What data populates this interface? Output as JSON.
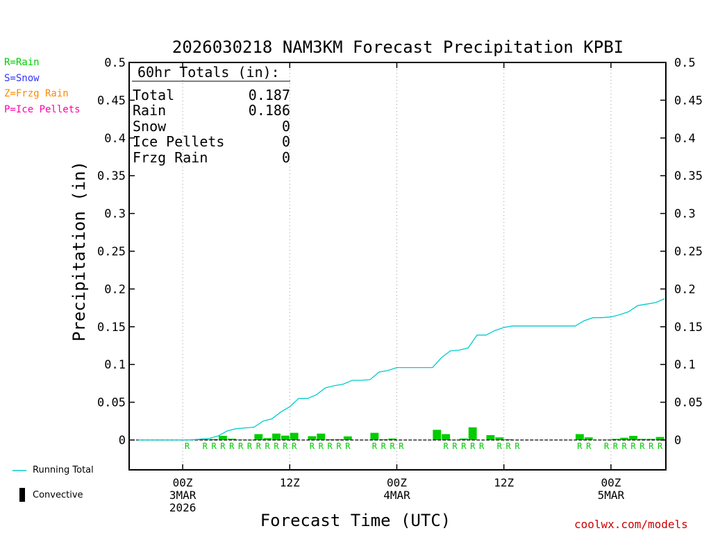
{
  "legend_keys": [
    {
      "text": "R=Rain",
      "color": "#00cc00"
    },
    {
      "text": "S=Snow",
      "color": "#3333ff"
    },
    {
      "text": "Z=Frzg Rain",
      "color": "#ff8800"
    },
    {
      "text": "P=Ice Pellets",
      "color": "#ff00aa"
    }
  ],
  "totals_box": {
    "heading": "60hr Totals (in):",
    "rows": [
      {
        "label": "Total",
        "value": "0.187"
      },
      {
        "label": "Rain",
        "value": "0.186"
      },
      {
        "label": "Snow",
        "value": "0"
      },
      {
        "label": "Ice Pellets",
        "value": "0"
      },
      {
        "label": "Frzg Rain",
        "value": "0"
      }
    ]
  },
  "bottom_legend": {
    "running_total": "Running Total",
    "convective": "Convective"
  },
  "watermark": "coolwx.com/models",
  "colors": {
    "running_total": "#00cccc",
    "rain_bar": "#00cc00",
    "axis": "#000000",
    "grid": "#999999"
  },
  "chart_data": {
    "type": "bar+line",
    "title": "2026030218 NAM3KM Forecast Precipitation KPBI",
    "xlabel": "Forecast Time (UTC)",
    "ylabel": "Precipitation (in)",
    "ylim": [
      -0.04,
      0.5
    ],
    "yticks": [
      0,
      0.05,
      0.1,
      0.15,
      0.2,
      0.25,
      0.3,
      0.35,
      0.4,
      0.45,
      0.5
    ],
    "ytick_labels": [
      "0",
      "0.05",
      "0.1",
      "0.15",
      "0.2",
      "0.25",
      "0.3",
      "0.35",
      "0.4",
      "0.45",
      "0.5"
    ],
    "x_unit": "forecast hour",
    "xlim": [
      0,
      61
    ],
    "xticks": [
      {
        "hour": 6,
        "lines": [
          "00Z",
          "3MAR",
          "2026"
        ]
      },
      {
        "hour": 18,
        "lines": [
          "12Z"
        ]
      },
      {
        "hour": 30,
        "lines": [
          "00Z",
          "4MAR"
        ]
      },
      {
        "hour": 42,
        "lines": [
          "12Z"
        ]
      },
      {
        "hour": 54,
        "lines": [
          "00Z",
          "5MAR"
        ]
      }
    ],
    "hours": [
      1,
      2,
      3,
      4,
      5,
      6,
      7,
      8,
      9,
      10,
      11,
      12,
      13,
      14,
      15,
      16,
      17,
      18,
      19,
      20,
      21,
      22,
      23,
      24,
      25,
      26,
      27,
      28,
      29,
      30,
      31,
      32,
      33,
      34,
      35,
      36,
      37,
      38,
      39,
      40,
      41,
      42,
      43,
      44,
      45,
      46,
      47,
      48,
      49,
      50,
      51,
      52,
      53,
      54,
      55,
      56,
      57,
      58,
      59,
      60
    ],
    "series": [
      {
        "name": "Rain (hourly)",
        "kind": "bar",
        "values": [
          0,
          0,
          0,
          0,
          0,
          0,
          0.0002,
          0.001,
          0.001,
          0.0013,
          0.0055,
          0.0018,
          0.0005,
          0.0003,
          0.0078,
          0.0025,
          0.0085,
          0.0058,
          0.0095,
          0,
          0.005,
          0.0085,
          0.001,
          0.001,
          0.0048,
          0,
          0,
          0.0095,
          0.001,
          0.002,
          0,
          0,
          0,
          0,
          0.0135,
          0.0078,
          0.0003,
          0.002,
          0.0168,
          0,
          0.0065,
          0.0035,
          0.001,
          0,
          0,
          0,
          0,
          0,
          0,
          0,
          0.0078,
          0.0035,
          0,
          0.0005,
          0.0015,
          0.003,
          0.0055,
          0.0015,
          0.0015,
          0.004
        ]
      },
      {
        "name": "Running Total",
        "kind": "line",
        "values": [
          0,
          0,
          0,
          0,
          0,
          0,
          0.0002,
          0.0012,
          0.0022,
          0.0055,
          0.012,
          0.015,
          0.016,
          0.017,
          0.025,
          0.028,
          0.037,
          0.044,
          0.055,
          0.055,
          0.06,
          0.069,
          0.072,
          0.074,
          0.079,
          0.079,
          0.08,
          0.09,
          0.092,
          0.096,
          0.096,
          0.096,
          0.096,
          0.096,
          0.109,
          0.118,
          0.119,
          0.122,
          0.139,
          0.139,
          0.145,
          0.149,
          0.151,
          0.151,
          0.151,
          0.151,
          0.151,
          0.151,
          0.151,
          0.151,
          0.158,
          0.162,
          0.162,
          0.163,
          0.166,
          0.17,
          0.178,
          0.18,
          0.182,
          0.187
        ]
      }
    ],
    "precip_type_codes": [
      {
        "hour": 7,
        "code": "R"
      },
      {
        "hour": 9,
        "code": "R"
      },
      {
        "hour": 10,
        "code": "R"
      },
      {
        "hour": 11,
        "code": "R"
      },
      {
        "hour": 12,
        "code": "R"
      },
      {
        "hour": 13,
        "code": "R"
      },
      {
        "hour": 14,
        "code": "R"
      },
      {
        "hour": 15,
        "code": "R"
      },
      {
        "hour": 16,
        "code": "R"
      },
      {
        "hour": 17,
        "code": "R"
      },
      {
        "hour": 18,
        "code": "R"
      },
      {
        "hour": 19,
        "code": "R"
      },
      {
        "hour": 21,
        "code": "R"
      },
      {
        "hour": 22,
        "code": "R"
      },
      {
        "hour": 23,
        "code": "R"
      },
      {
        "hour": 24,
        "code": "R"
      },
      {
        "hour": 25,
        "code": "R"
      },
      {
        "hour": 28,
        "code": "R"
      },
      {
        "hour": 29,
        "code": "R"
      },
      {
        "hour": 30,
        "code": "R"
      },
      {
        "hour": 31,
        "code": "R"
      },
      {
        "hour": 36,
        "code": "R"
      },
      {
        "hour": 37,
        "code": "R"
      },
      {
        "hour": 38,
        "code": "R"
      },
      {
        "hour": 39,
        "code": "R"
      },
      {
        "hour": 40,
        "code": "R"
      },
      {
        "hour": 42,
        "code": "R"
      },
      {
        "hour": 43,
        "code": "R"
      },
      {
        "hour": 44,
        "code": "R"
      },
      {
        "hour": 51,
        "code": "R"
      },
      {
        "hour": 52,
        "code": "R"
      },
      {
        "hour": 54,
        "code": "R"
      },
      {
        "hour": 55,
        "code": "R"
      },
      {
        "hour": 56,
        "code": "R"
      },
      {
        "hour": 57,
        "code": "R"
      },
      {
        "hour": 58,
        "code": "R"
      },
      {
        "hour": 59,
        "code": "R"
      },
      {
        "hour": 60,
        "code": "R"
      }
    ],
    "legend": [
      "Running Total",
      "Convective"
    ],
    "grid": "vertical dotted at 00Z/12Z"
  }
}
